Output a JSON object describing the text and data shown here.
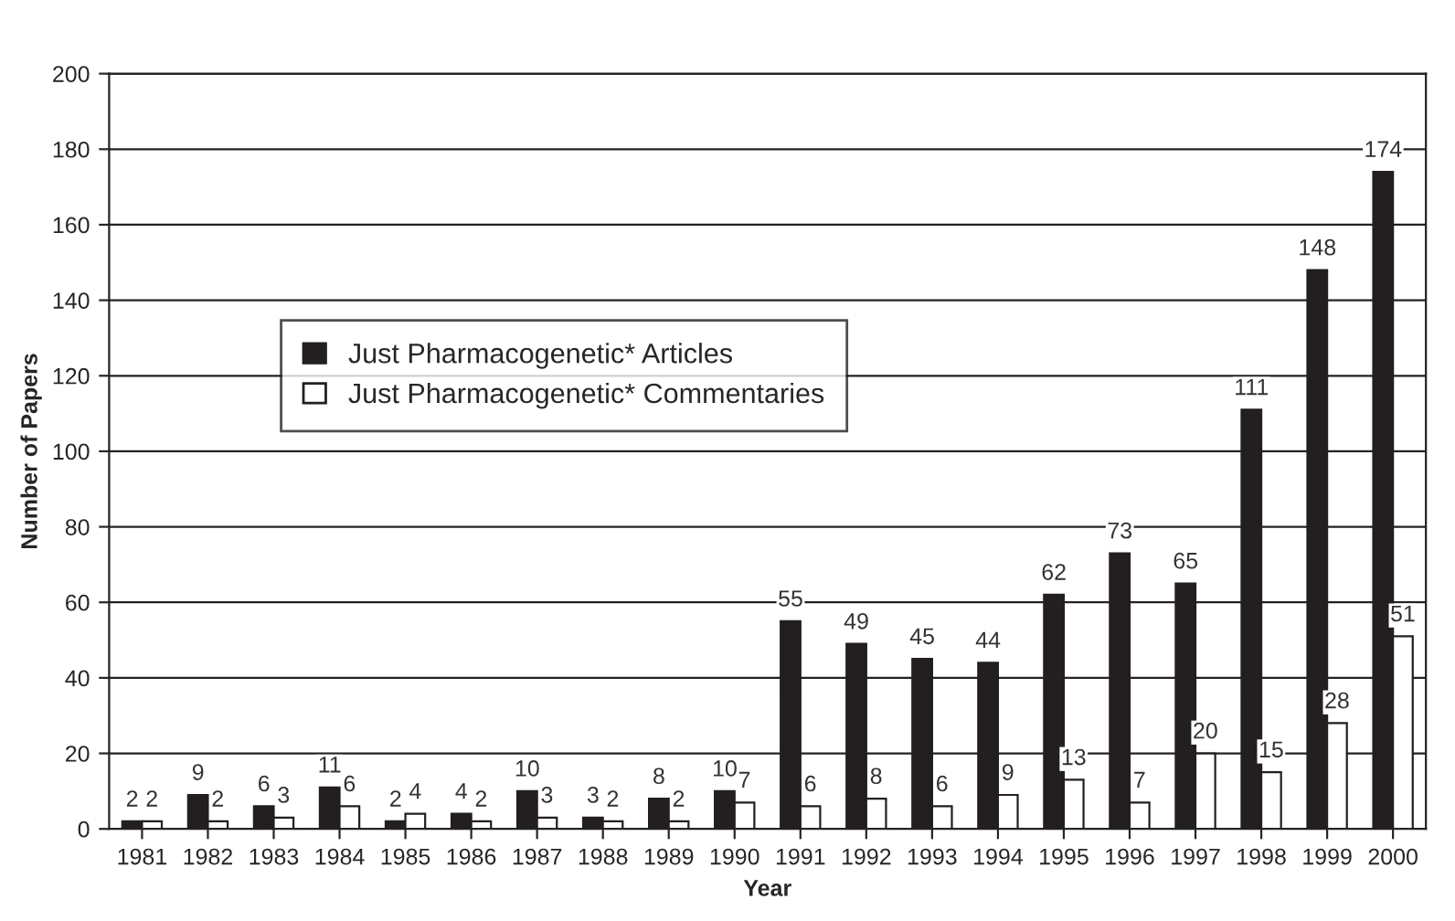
{
  "chart_data": {
    "type": "bar",
    "xlabel": "Year",
    "ylabel": "Number of Papers",
    "categories": [
      "1981",
      "1982",
      "1983",
      "1984",
      "1985",
      "1986",
      "1987",
      "1988",
      "1989",
      "1990",
      "1991",
      "1992",
      "1993",
      "1994",
      "1995",
      "1996",
      "1997",
      "1998",
      "1999",
      "2000"
    ],
    "series": [
      {
        "name": "Just Pharmacogenetic* Articles",
        "color": "#231f20",
        "values": [
          2,
          9,
          6,
          11,
          2,
          4,
          10,
          3,
          8,
          10,
          55,
          49,
          45,
          44,
          62,
          73,
          65,
          111,
          148,
          174
        ]
      },
      {
        "name": "Just Pharmacogenetic* Commentaries",
        "color": "#ffffff",
        "values": [
          2,
          2,
          3,
          6,
          4,
          2,
          3,
          2,
          2,
          7,
          6,
          8,
          6,
          9,
          13,
          7,
          20,
          15,
          28,
          51
        ]
      }
    ],
    "ylim": [
      0,
      200
    ],
    "yticks": [
      0,
      20,
      40,
      60,
      80,
      100,
      120,
      140,
      160,
      180,
      200
    ],
    "grid": "y",
    "legend": "center left",
    "data_labels": true
  }
}
